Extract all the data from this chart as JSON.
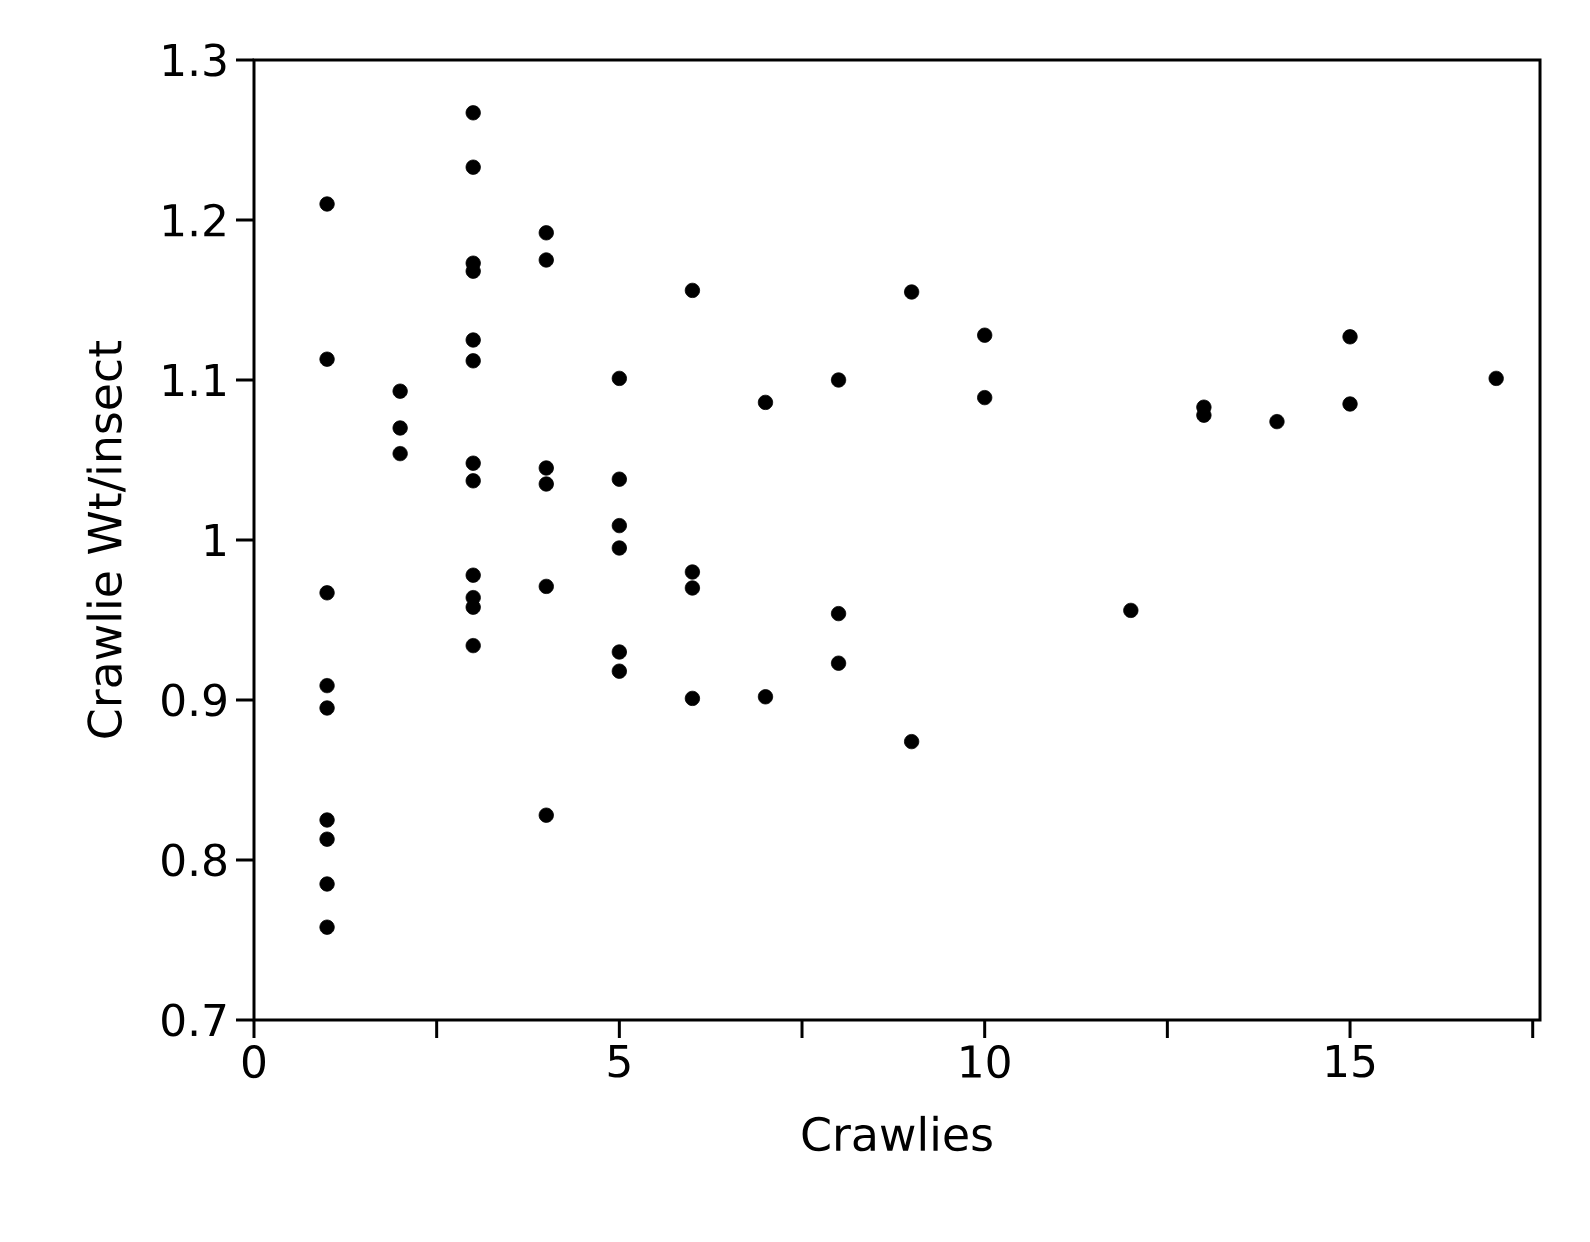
{
  "chart_data": {
    "type": "scatter",
    "xlabel": "Crawlies",
    "ylabel": "Crawlie Wt/insect",
    "x": [
      1,
      1,
      1,
      1,
      1,
      1,
      1,
      1,
      1,
      2,
      2,
      2,
      3,
      3,
      3,
      3,
      3,
      3,
      3,
      3,
      3,
      3,
      3,
      3,
      4,
      4,
      4,
      4,
      4,
      4,
      5,
      5,
      5,
      5,
      5,
      5,
      6,
      6,
      6,
      6,
      7,
      7,
      8,
      8,
      8,
      9,
      9,
      10,
      10,
      12,
      13,
      13,
      14,
      15,
      15,
      17
    ],
    "values": [
      1.21,
      1.113,
      0.967,
      0.909,
      0.895,
      0.825,
      0.813,
      0.785,
      0.758,
      1.093,
      1.07,
      1.054,
      1.267,
      1.233,
      1.173,
      1.168,
      1.125,
      1.112,
      1.048,
      1.037,
      0.978,
      0.964,
      0.958,
      0.934,
      1.192,
      1.175,
      1.045,
      1.035,
      0.971,
      0.828,
      1.101,
      1.038,
      1.009,
      0.995,
      0.93,
      0.918,
      1.156,
      0.98,
      0.97,
      0.901,
      1.086,
      0.902,
      1.1,
      0.954,
      0.923,
      1.155,
      0.874,
      1.128,
      1.089,
      0.956,
      1.083,
      1.078,
      1.074,
      1.127,
      1.085,
      1.101
    ],
    "color": "#000000",
    "marker": "circle",
    "xlim": [
      0,
      17.6
    ],
    "ylim": [
      0.7,
      1.3
    ],
    "xticks": [
      0,
      {
        "value": 2.5,
        "label": null
      },
      5,
      {
        "value": 7.5,
        "label": null
      },
      10,
      {
        "value": 12.5,
        "label": null
      },
      15,
      {
        "value": 17.5,
        "label": null
      }
    ],
    "yticks": [
      0.7,
      0.8,
      0.9,
      1,
      1.1,
      1.2,
      1.3
    ]
  }
}
